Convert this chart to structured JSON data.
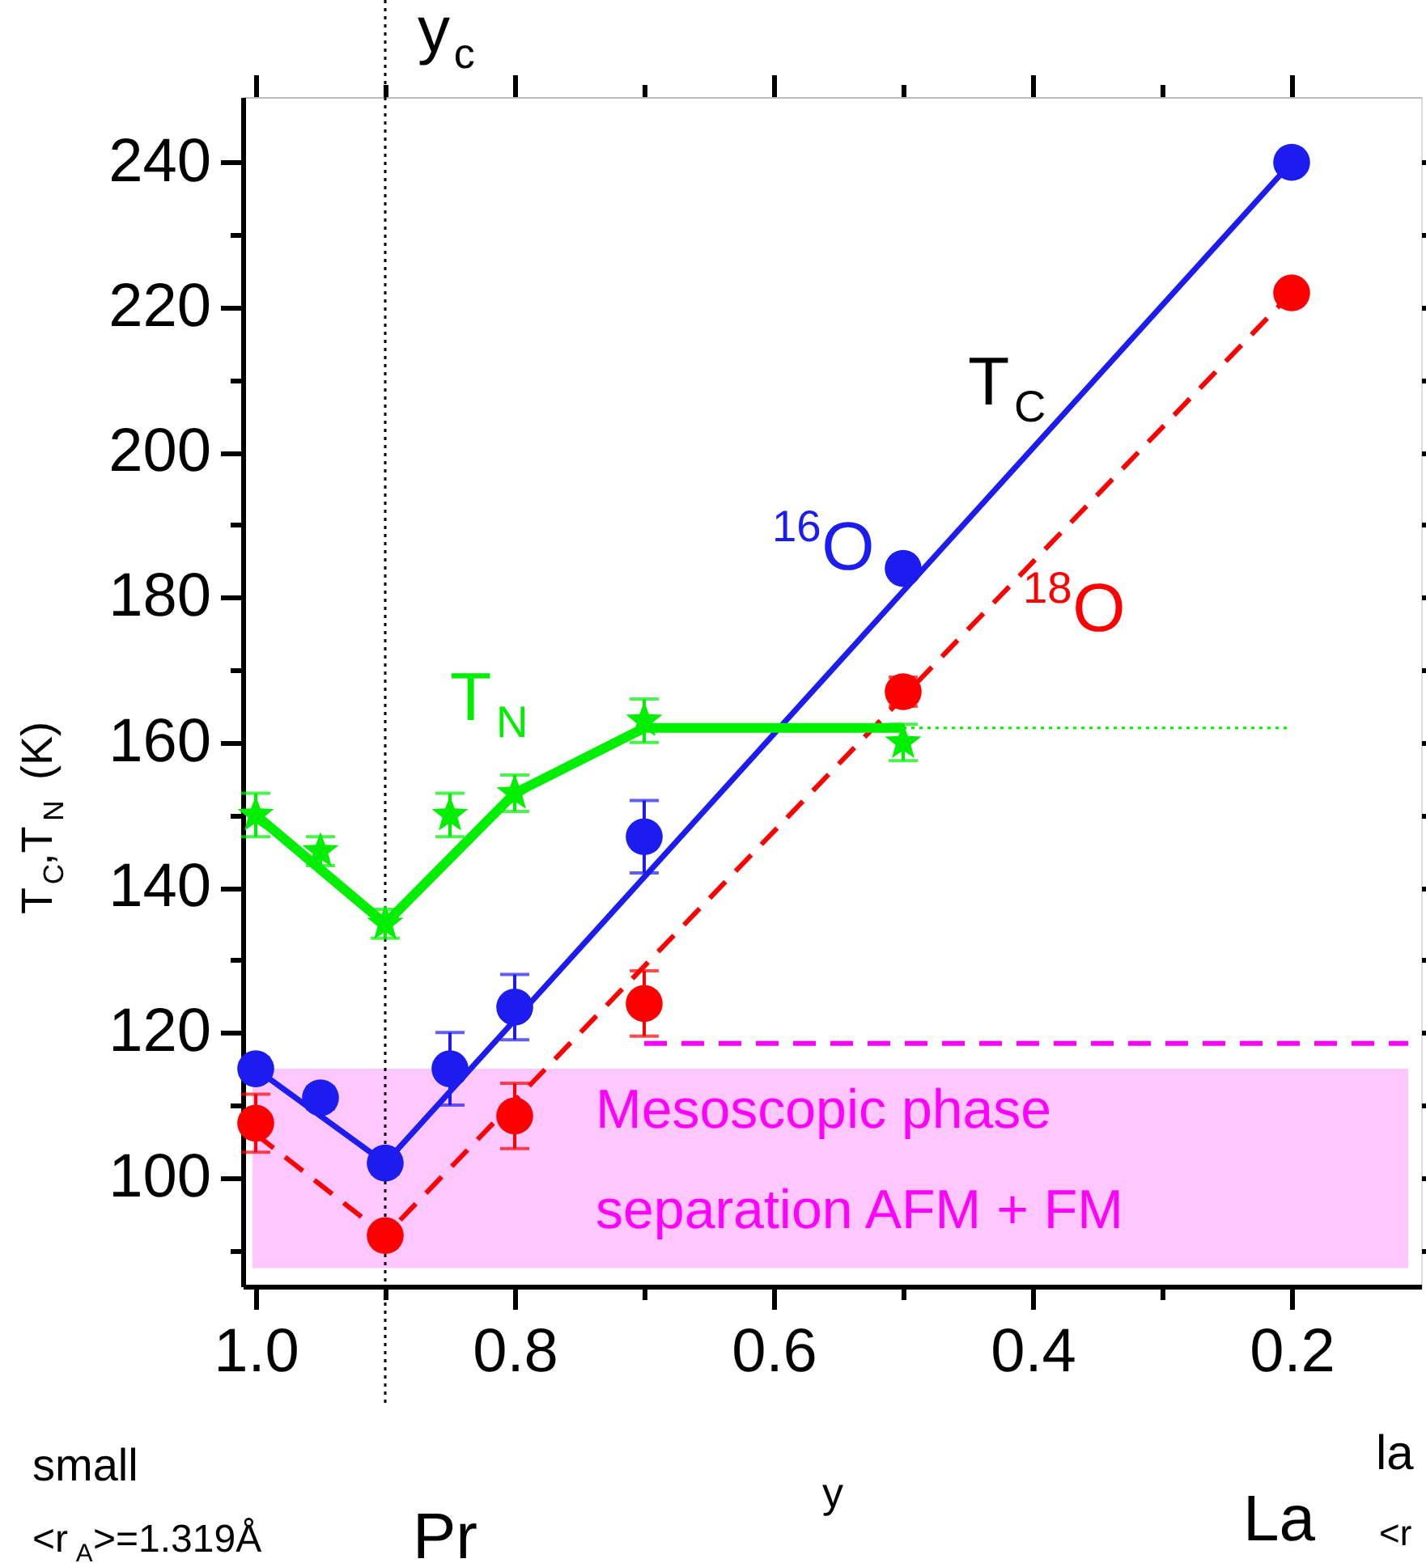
{
  "chart_data": {
    "type": "scatter",
    "xlabel": "y",
    "ylabel": "T$_{C}$,T$_{N}$ (K)",
    "xlim": [
      1.01,
      0.1
    ],
    "xticks": [
      {
        "value": 1.0,
        "label": "1.0"
      },
      {
        "value": 0.9,
        "label": null
      },
      0.8,
      {
        "value": 0.7,
        "label": null
      },
      0.6,
      {
        "value": 0.5,
        "label": null
      },
      0.4,
      {
        "value": 0.3,
        "label": null
      },
      0.2
    ],
    "ylim": [
      85,
      249
    ],
    "yticks": [
      {
        "value": 90,
        "label": null
      },
      100,
      {
        "value": 110,
        "label": null
      },
      120,
      {
        "value": 130,
        "label": null
      },
      140,
      {
        "value": 150,
        "label": null
      },
      160,
      {
        "value": 170,
        "label": null
      },
      180,
      {
        "value": 190,
        "label": null
      },
      200,
      {
        "value": 210,
        "label": null
      },
      220,
      {
        "value": 230,
        "label": null
      },
      240
    ],
    "grid": false,
    "series": [
      {
        "name": "$^{16}$O",
        "marker": "circle",
        "color": "#1c1cf0",
        "x": [
          1.0,
          0.95,
          0.9,
          0.85,
          0.8,
          0.7,
          0.5,
          0.2
        ],
        "values": [
          115,
          111,
          102,
          115,
          123.5,
          147,
          184,
          240
        ],
        "errors": [
          1.5,
          1.5,
          1.5,
          5,
          4.5,
          5,
          1,
          1
        ]
      },
      {
        "type": "line",
        "line_style": "solid",
        "color": "#1c1cf0",
        "x": [
          1.0,
          0.9,
          0.2
        ],
        "values": [
          115,
          102,
          240
        ]
      },
      {
        "name": "$^{18}$O",
        "marker": "circle",
        "color": "#ff0000",
        "x": [
          1.0,
          0.9,
          0.8,
          0.7,
          0.5,
          0.2
        ],
        "values": [
          107.5,
          92,
          108.5,
          124,
          167,
          222
        ],
        "errors": [
          4,
          1,
          4.5,
          4.5,
          2,
          1
        ]
      },
      {
        "type": "line",
        "line_style": "dashed",
        "color": "#ff0000",
        "x": [
          1.0,
          0.9,
          0.2
        ],
        "values": [
          106,
          92,
          222
        ]
      },
      {
        "name": "T$_{N}$",
        "marker": "star",
        "color": "#00ee00",
        "x": [
          1.0,
          0.95,
          0.9,
          0.85,
          0.8,
          0.7,
          0.5
        ],
        "values": [
          150,
          145,
          135,
          150,
          153,
          163,
          160
        ],
        "errors": [
          3,
          2,
          2,
          3,
          2.5,
          3,
          2.5
        ]
      },
      {
        "type": "line",
        "line_style": "solid",
        "color": "#00ee00",
        "x": [
          1.0,
          0.9,
          0.8,
          0.7,
          0.5
        ],
        "values": [
          150,
          135,
          153,
          162,
          162
        ]
      },
      {
        "type": "line",
        "line_style": "dotted",
        "color": "#00ee00",
        "x": [
          0.5,
          0.2
        ],
        "values": [
          162,
          162
        ]
      },
      {
        "type": "line",
        "line_style": "dashed",
        "color": "#ff00ff",
        "x": [
          0.7,
          0.11
        ],
        "values": [
          118.5,
          118.5
        ]
      }
    ],
    "ref_lines": [
      {
        "axis": "x",
        "value": 0.9,
        "label": "y$_{c}$",
        "line_style": "dotted",
        "color": "#000000"
      }
    ],
    "bands": [
      {
        "axis": "y",
        "from": 87.5,
        "to": 115,
        "label": "Mesoscopic phase separation AFM + FM",
        "color": "#ff00ff"
      }
    ],
    "annotations": [
      "T$_{C}$",
      "small",
      "<r$_{A}$>=1.319Å",
      "Pr",
      "La",
      "la",
      "<r"
    ]
  }
}
